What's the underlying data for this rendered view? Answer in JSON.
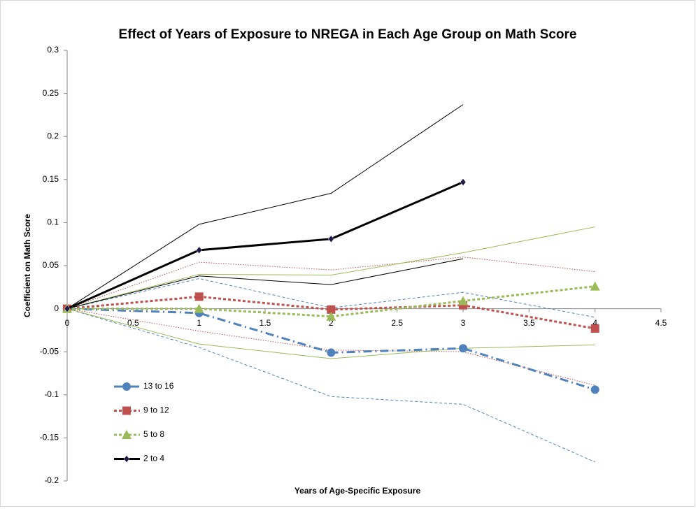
{
  "chart_data": {
    "type": "line",
    "title": "Effect of Years of Exposure to NREGA in Each Age Group on Math Score",
    "x_label": "Years of Age-Specific Exposure",
    "y_label": "Coefficient on Math Score",
    "x": [
      0,
      1,
      2,
      3,
      4
    ],
    "xlim": [
      0,
      4.5
    ],
    "xticks": [
      0,
      0.5,
      1,
      1.5,
      2,
      2.5,
      3,
      3.5,
      4,
      4.5
    ],
    "ylim": [
      -0.2,
      0.3
    ],
    "yticks": [
      -0.2,
      -0.15,
      -0.1,
      -0.05,
      0,
      0.05,
      0.1,
      0.15,
      0.2,
      0.25,
      0.3
    ],
    "grid": false,
    "legend": "lower left",
    "series": [
      {
        "name": "13 to 16",
        "color": "#4f81bd",
        "line_style": "dash-dot",
        "width": 3,
        "marker": "circle",
        "values": [
          0,
          -0.005,
          -0.051,
          -0.046,
          -0.094
        ]
      },
      {
        "name": "9 to 12",
        "color": "#c0504d",
        "line_style": "dash",
        "width": 3,
        "marker": "square",
        "values": [
          0,
          0.014,
          -0.001,
          0.004,
          -0.023
        ]
      },
      {
        "name": "5 to 8",
        "color": "#9bbb59",
        "line_style": "dash",
        "width": 3,
        "marker": "triangle",
        "values": [
          0,
          0,
          -0.009,
          0.009,
          0.026
        ]
      },
      {
        "name": "2 to 4",
        "color": "#000000",
        "line_style": "solid",
        "width": 3,
        "marker": "diamond",
        "values": [
          0,
          0.068,
          0.081,
          0.147,
          null
        ]
      },
      {
        "color": "#4f81bd",
        "line_style": "dash",
        "width": 1,
        "values": [
          0,
          0.035,
          0.001,
          0.019,
          -0.01
        ]
      },
      {
        "color": "#4f81bd",
        "line_style": "dash",
        "width": 1,
        "values": [
          0,
          -0.045,
          -0.102,
          -0.111,
          -0.178
        ]
      },
      {
        "color": "#c0504d",
        "line_style": "dot",
        "width": 1,
        "values": [
          0,
          0.054,
          0.045,
          0.06,
          0.043
        ]
      },
      {
        "color": "#c0504d",
        "line_style": "dot",
        "width": 1,
        "values": [
          0,
          -0.026,
          -0.048,
          -0.05,
          -0.089
        ]
      },
      {
        "color": "#9bbb59",
        "line_style": "solid",
        "width": 1,
        "values": [
          0,
          0.04,
          0.039,
          0.065,
          0.095
        ]
      },
      {
        "color": "#9bbb59",
        "line_style": "solid",
        "width": 1,
        "values": [
          0,
          -0.041,
          -0.058,
          -0.046,
          -0.042
        ]
      },
      {
        "color": "#000000",
        "line_style": "solid",
        "width": 1,
        "values": [
          0,
          0.098,
          0.134,
          0.237,
          null
        ]
      },
      {
        "color": "#000000",
        "line_style": "solid",
        "width": 1,
        "values": [
          0,
          0.038,
          0.028,
          0.058,
          null
        ]
      }
    ]
  }
}
